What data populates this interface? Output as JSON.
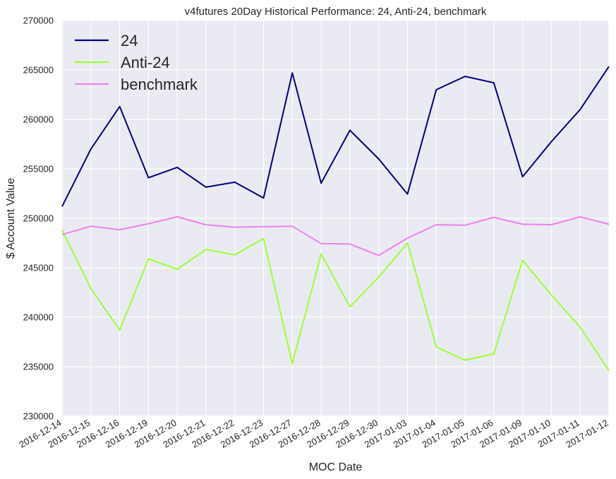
{
  "chart_data": {
    "type": "line",
    "title": "v4futures 20Day Historical Performance: 24, Anti-24, benchmark",
    "xlabel": "MOC Date",
    "ylabel": "$ Account Value",
    "ylim": [
      230000,
      270000
    ],
    "yticks": [
      230000,
      235000,
      240000,
      245000,
      250000,
      255000,
      260000,
      265000,
      270000
    ],
    "categories": [
      "2016-12-14",
      "2016-12-15",
      "2016-12-16",
      "2016-12-19",
      "2016-12-20",
      "2016-12-21",
      "2016-12-22",
      "2016-12-23",
      "2016-12-27",
      "2016-12-28",
      "2016-12-29",
      "2016-12-30",
      "2017-01-03",
      "2017-01-04",
      "2017-01-05",
      "2017-01-06",
      "2017-01-09",
      "2017-01-10",
      "2017-01-11",
      "2017-01-12"
    ],
    "series": [
      {
        "name": "24",
        "color": "#000080",
        "values": [
          251200,
          257000,
          261300,
          254100,
          255150,
          253150,
          253650,
          252050,
          264700,
          253550,
          258900,
          256000,
          252450,
          263000,
          264350,
          263700,
          254200,
          257750,
          261000,
          265350
        ]
      },
      {
        "name": "Anti-24",
        "color": "#99ff33",
        "values": [
          248800,
          242900,
          238700,
          245900,
          244850,
          246850,
          246300,
          247950,
          235300,
          246400,
          241050,
          244050,
          247500,
          237000,
          235650,
          236300,
          245750,
          242250,
          239000,
          234600
        ]
      },
      {
        "name": "benchmark",
        "color": "#ee82ee",
        "values": [
          248350,
          249200,
          248850,
          249450,
          250150,
          249350,
          249100,
          249150,
          249200,
          247450,
          247400,
          246250,
          248000,
          249350,
          249300,
          250100,
          249400,
          249350,
          250150,
          249400
        ]
      }
    ],
    "grid": true,
    "legend_position": "top-left"
  }
}
